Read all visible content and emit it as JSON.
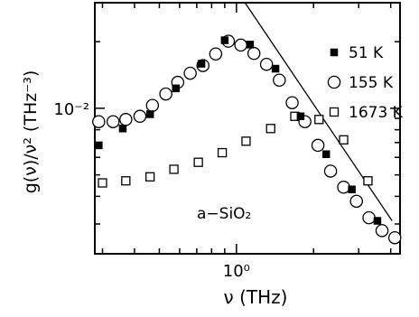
{
  "chart_data": {
    "type": "scatter",
    "title": "",
    "xlabel": "ν (THz)",
    "ylabel": "g(ν)/ν² (THz⁻³)",
    "xscale": "log",
    "yscale": "log",
    "xlim": [
      0.28,
      4.35
    ],
    "ylim": [
      0.0022,
      0.03
    ],
    "x_ticks": [
      {
        "value": 1.0,
        "label": "10⁰"
      }
    ],
    "y_ticks": [
      {
        "value": 0.01,
        "label": "10⁻²"
      }
    ],
    "annotation": "a−SiO₂",
    "legend_position": "right",
    "series": [
      {
        "name": "51 K",
        "marker": "filled-square",
        "x": [
          0.29,
          0.36,
          0.46,
          0.58,
          0.73,
          0.9,
          1.13,
          1.42,
          1.78,
          2.24,
          2.82,
          3.55
        ],
        "y": [
          0.0068,
          0.0081,
          0.0094,
          0.0123,
          0.0159,
          0.0203,
          0.0194,
          0.0151,
          0.0092,
          0.0062,
          0.0043,
          0.0031
        ]
      },
      {
        "name": "155 K",
        "marker": "open-circle",
        "x": [
          0.29,
          0.33,
          0.37,
          0.42,
          0.47,
          0.53,
          0.59,
          0.66,
          0.74,
          0.83,
          0.93,
          1.04,
          1.17,
          1.31,
          1.47,
          1.65,
          1.85,
          2.08,
          2.33,
          2.62,
          2.94,
          3.29,
          3.7,
          4.15
        ],
        "y": [
          0.0087,
          0.0087,
          0.0089,
          0.0092,
          0.0103,
          0.0116,
          0.0131,
          0.0144,
          0.0156,
          0.0176,
          0.0201,
          0.0193,
          0.0177,
          0.0158,
          0.0134,
          0.0106,
          0.0087,
          0.0068,
          0.0052,
          0.0044,
          0.0038,
          0.0032,
          0.0028,
          0.0026
        ]
      },
      {
        "name": "1673 K",
        "marker": "open-square",
        "x": [
          0.3,
          0.37,
          0.46,
          0.57,
          0.71,
          0.88,
          1.09,
          1.36,
          1.69,
          2.1,
          2.62,
          3.26
        ],
        "y": [
          0.0046,
          0.0047,
          0.0049,
          0.0053,
          0.0057,
          0.0063,
          0.0071,
          0.0081,
          0.0092,
          0.0089,
          0.0072,
          0.0047
        ]
      }
    ],
    "fit_line": {
      "x": [
        1.08,
        4.05
      ],
      "y": [
        0.03,
        0.0031
      ]
    },
    "colors": {
      "ink": "#000000",
      "background": "#ffffff"
    }
  }
}
